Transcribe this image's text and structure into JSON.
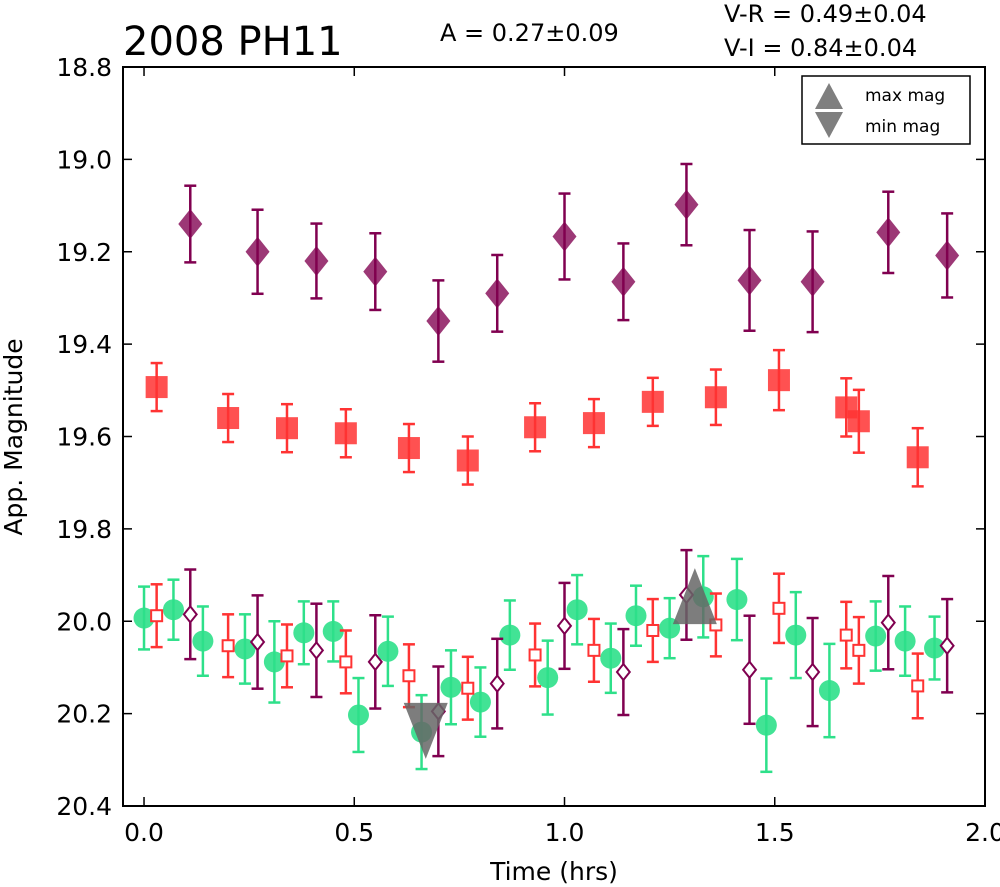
{
  "chart_data": {
    "type": "scatter",
    "title": "2008 PH11",
    "annotations": {
      "amplitude": "A  = 0.27±0.09",
      "vr": "V-R = 0.49±0.04",
      "vi": "V-I  = 0.84±0.04"
    },
    "xlabel": "Time (hrs)",
    "ylabel": "App. Magnitude",
    "xlim": [
      -0.05,
      2.0
    ],
    "ylim": [
      20.4,
      18.8
    ],
    "y_inverted": true,
    "xticks": [
      "0.0",
      "0.5",
      "1.0",
      "1.5",
      "2.0"
    ],
    "yticks": [
      "18.8",
      "19.0",
      "19.2",
      "19.4",
      "19.6",
      "19.8",
      "20.0",
      "20.2",
      "20.4"
    ],
    "legend": {
      "position": "top-right",
      "entries": [
        {
          "label": "max mag",
          "marker": "triangle-up",
          "color": "#7f7f7f"
        },
        {
          "label": "min mag",
          "marker": "triangle-down",
          "color": "#7f7f7f"
        }
      ]
    },
    "colors": {
      "i_band": "#800050",
      "r_band": "#ff3333",
      "v_band": "#2ee08a",
      "extrema": "#666666"
    },
    "series": [
      {
        "band": "I",
        "marker": "diamond",
        "color": "#800050",
        "filled": true,
        "points": [
          {
            "x": 0.11,
            "y": 19.14,
            "err": 0.083
          },
          {
            "x": 0.27,
            "y": 19.2,
            "err": 0.091
          },
          {
            "x": 0.41,
            "y": 19.22,
            "err": 0.081
          },
          {
            "x": 0.55,
            "y": 19.243,
            "err": 0.083
          },
          {
            "x": 0.7,
            "y": 19.35,
            "err": 0.088
          },
          {
            "x": 0.84,
            "y": 19.29,
            "err": 0.083
          },
          {
            "x": 1.0,
            "y": 19.167,
            "err": 0.093
          },
          {
            "x": 1.14,
            "y": 19.265,
            "err": 0.083
          },
          {
            "x": 1.29,
            "y": 19.098,
            "err": 0.088
          },
          {
            "x": 1.44,
            "y": 19.262,
            "err": 0.109
          },
          {
            "x": 1.59,
            "y": 19.265,
            "err": 0.109
          },
          {
            "x": 1.77,
            "y": 19.158,
            "err": 0.088
          },
          {
            "x": 1.91,
            "y": 19.208,
            "err": 0.091
          }
        ]
      },
      {
        "band": "R",
        "marker": "square",
        "color": "#ff3333",
        "filled": true,
        "points": [
          {
            "x": 0.03,
            "y": 19.493,
            "err": 0.052
          },
          {
            "x": 0.2,
            "y": 19.56,
            "err": 0.052
          },
          {
            "x": 0.34,
            "y": 19.582,
            "err": 0.052
          },
          {
            "x": 0.48,
            "y": 19.593,
            "err": 0.052
          },
          {
            "x": 0.63,
            "y": 19.625,
            "err": 0.052
          },
          {
            "x": 0.77,
            "y": 19.652,
            "err": 0.052
          },
          {
            "x": 0.93,
            "y": 19.58,
            "err": 0.052
          },
          {
            "x": 1.07,
            "y": 19.571,
            "err": 0.052
          },
          {
            "x": 1.21,
            "y": 19.525,
            "err": 0.052
          },
          {
            "x": 1.36,
            "y": 19.515,
            "err": 0.06
          },
          {
            "x": 1.51,
            "y": 19.478,
            "err": 0.065
          },
          {
            "x": 1.67,
            "y": 19.537,
            "err": 0.063
          },
          {
            "x": 1.7,
            "y": 19.567,
            "err": 0.068
          },
          {
            "x": 1.84,
            "y": 19.645,
            "err": 0.063
          }
        ]
      },
      {
        "band": "V",
        "marker": "circle",
        "color": "#2ee08a",
        "filled": true,
        "points": [
          {
            "x": 0.0,
            "y": 19.993,
            "err": 0.068
          },
          {
            "x": 0.07,
            "y": 19.975,
            "err": 0.065
          },
          {
            "x": 0.14,
            "y": 20.043,
            "err": 0.075
          },
          {
            "x": 0.24,
            "y": 20.06,
            "err": 0.075
          },
          {
            "x": 0.31,
            "y": 20.088,
            "err": 0.088
          },
          {
            "x": 0.38,
            "y": 20.025,
            "err": 0.068
          },
          {
            "x": 0.45,
            "y": 20.022,
            "err": 0.065
          },
          {
            "x": 0.51,
            "y": 20.203,
            "err": 0.08
          },
          {
            "x": 0.58,
            "y": 20.065,
            "err": 0.075
          },
          {
            "x": 0.66,
            "y": 20.24,
            "err": 0.08
          },
          {
            "x": 0.73,
            "y": 20.143,
            "err": 0.08
          },
          {
            "x": 0.8,
            "y": 20.175,
            "err": 0.075
          },
          {
            "x": 0.87,
            "y": 20.03,
            "err": 0.075
          },
          {
            "x": 0.96,
            "y": 20.122,
            "err": 0.08
          },
          {
            "x": 1.03,
            "y": 19.975,
            "err": 0.075
          },
          {
            "x": 1.11,
            "y": 20.08,
            "err": 0.075
          },
          {
            "x": 1.17,
            "y": 19.988,
            "err": 0.065
          },
          {
            "x": 1.25,
            "y": 20.015,
            "err": 0.065
          },
          {
            "x": 1.33,
            "y": 19.947,
            "err": 0.088
          },
          {
            "x": 1.41,
            "y": 19.953,
            "err": 0.088
          },
          {
            "x": 1.48,
            "y": 20.225,
            "err": 0.101
          },
          {
            "x": 1.55,
            "y": 20.03,
            "err": 0.093
          },
          {
            "x": 1.63,
            "y": 20.15,
            "err": 0.101
          },
          {
            "x": 1.74,
            "y": 20.032,
            "err": 0.075
          },
          {
            "x": 1.81,
            "y": 20.043,
            "err": 0.075
          },
          {
            "x": 1.88,
            "y": 20.058,
            "err": 0.068
          }
        ]
      },
      {
        "band": "R-shifted",
        "marker": "square",
        "color": "#ff3333",
        "filled": false,
        "points": [
          {
            "x": 0.03,
            "y": 19.988,
            "err": 0.068
          },
          {
            "x": 0.2,
            "y": 20.053,
            "err": 0.068
          },
          {
            "x": 0.34,
            "y": 20.075,
            "err": 0.068
          },
          {
            "x": 0.48,
            "y": 20.088,
            "err": 0.068
          },
          {
            "x": 0.63,
            "y": 20.118,
            "err": 0.068
          },
          {
            "x": 0.77,
            "y": 20.145,
            "err": 0.068
          },
          {
            "x": 0.93,
            "y": 20.073,
            "err": 0.068
          },
          {
            "x": 1.07,
            "y": 20.063,
            "err": 0.068
          },
          {
            "x": 1.21,
            "y": 20.02,
            "err": 0.068
          },
          {
            "x": 1.36,
            "y": 20.008,
            "err": 0.068
          },
          {
            "x": 1.51,
            "y": 19.972,
            "err": 0.075
          },
          {
            "x": 1.67,
            "y": 20.03,
            "err": 0.072
          },
          {
            "x": 1.7,
            "y": 20.063,
            "err": 0.072
          },
          {
            "x": 1.84,
            "y": 20.14,
            "err": 0.07
          }
        ]
      },
      {
        "band": "I-shifted",
        "marker": "diamond",
        "color": "#800050",
        "filled": false,
        "points": [
          {
            "x": 0.11,
            "y": 19.985,
            "err": 0.097
          },
          {
            "x": 0.27,
            "y": 20.045,
            "err": 0.101
          },
          {
            "x": 0.41,
            "y": 20.063,
            "err": 0.101
          },
          {
            "x": 0.55,
            "y": 20.088,
            "err": 0.101
          },
          {
            "x": 0.7,
            "y": 20.195,
            "err": 0.097
          },
          {
            "x": 0.84,
            "y": 20.135,
            "err": 0.097
          },
          {
            "x": 1.0,
            "y": 20.01,
            "err": 0.093
          },
          {
            "x": 1.14,
            "y": 20.11,
            "err": 0.093
          },
          {
            "x": 1.29,
            "y": 19.943,
            "err": 0.097
          },
          {
            "x": 1.44,
            "y": 20.105,
            "err": 0.117
          },
          {
            "x": 1.59,
            "y": 20.11,
            "err": 0.117
          },
          {
            "x": 1.77,
            "y": 20.003,
            "err": 0.101
          },
          {
            "x": 1.91,
            "y": 20.053,
            "err": 0.101
          }
        ]
      }
    ],
    "extrema": [
      {
        "label": "max mag",
        "x": 1.31,
        "y": 19.963,
        "marker": "triangle-up"
      },
      {
        "label": "min mag",
        "x": 0.67,
        "y": 20.22,
        "marker": "triangle-down"
      }
    ]
  }
}
